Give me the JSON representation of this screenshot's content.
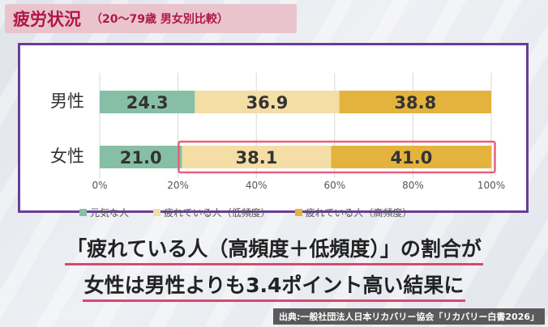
{
  "header": {
    "title": "疲労状況",
    "subtitle": "（20～79歳 男女別比較）"
  },
  "chart_data": {
    "type": "bar",
    "stacked": true,
    "orientation": "horizontal",
    "categories": [
      "男性",
      "女性"
    ],
    "series": [
      {
        "name": "元気な人",
        "values": [
          24.3,
          21.0
        ],
        "color": "#87bfa6"
      },
      {
        "name": "疲れている人（低頻度）",
        "values": [
          36.9,
          38.1
        ],
        "color": "#f4dea6"
      },
      {
        "name": "疲れている人（高頻度）",
        "values": [
          38.8,
          41.0
        ],
        "color": "#e3b33e"
      }
    ],
    "xlim": [
      0,
      100
    ],
    "x_ticks": [
      "0%",
      "20%",
      "40%",
      "60%",
      "80%",
      "100%"
    ],
    "grid": true,
    "legend_position": "bottom",
    "highlight_color": "#e8607e",
    "highlight_category": "女性",
    "highlight_series": [
      "疲れている人（低頻度）",
      "疲れている人（高頻度）"
    ]
  },
  "caption": {
    "line1": "「疲れている人（高頻度＋低頻度）」の割合が",
    "line2": "女性は男性よりも3.4ポイント高い結果に"
  },
  "source": "出典:一般社団法人日本リカバリー協会「リカバリー白書2026」"
}
